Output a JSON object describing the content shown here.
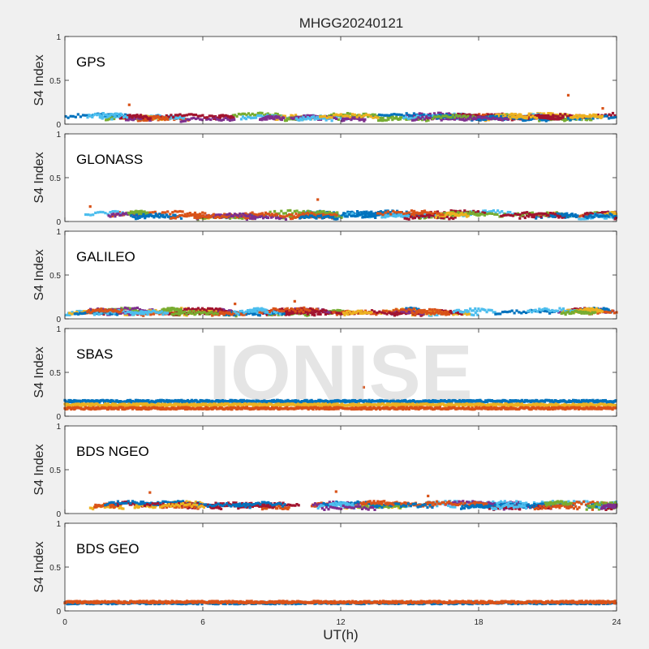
{
  "figure": {
    "title": "MHGG20240121",
    "xlabel": "UT(h)",
    "watermark": "IONISE"
  },
  "chart_data": [
    {
      "type": "scatter",
      "panel_label": "GPS",
      "ylabel": "S4 Index",
      "xlim": [
        0,
        24
      ],
      "ylim": [
        0,
        1
      ],
      "xticks": [
        0,
        6,
        12,
        18,
        24
      ],
      "yticks": [
        0,
        0.5,
        1
      ],
      "ytick_labels": [
        "0",
        "0.5",
        "1"
      ],
      "grid": false,
      "series_colors": [
        "#0072bd",
        "#d95319",
        "#edb120",
        "#7e2f8e",
        "#77ac30",
        "#4dbeee",
        "#a2142f"
      ],
      "baseline_s4": 0.07,
      "spread_s4": 0.05,
      "highlights": [
        {
          "x": 2.8,
          "y": 0.22
        },
        {
          "x": 21.9,
          "y": 0.33
        },
        {
          "x": 23.4,
          "y": 0.18
        }
      ]
    },
    {
      "type": "scatter",
      "panel_label": "GLONASS",
      "ylabel": "S4 Index",
      "xlim": [
        0,
        24
      ],
      "ylim": [
        0,
        1
      ],
      "xticks": [
        0,
        6,
        12,
        18,
        24
      ],
      "yticks": [
        0,
        0.5,
        1
      ],
      "ytick_labels": [
        "0",
        "0.5",
        "1"
      ],
      "grid": false,
      "series_colors": [
        "#0072bd",
        "#d95319",
        "#edb120",
        "#7e2f8e",
        "#77ac30",
        "#4dbeee",
        "#a2142f"
      ],
      "baseline_s4": 0.06,
      "spread_s4": 0.06,
      "highlights": [
        {
          "x": 1.1,
          "y": 0.17
        },
        {
          "x": 11.0,
          "y": 0.25
        }
      ]
    },
    {
      "type": "scatter",
      "panel_label": "GALILEO",
      "ylabel": "S4 Index",
      "xlim": [
        0,
        24
      ],
      "ylim": [
        0,
        1
      ],
      "xticks": [
        0,
        6,
        12,
        18,
        24
      ],
      "yticks": [
        0,
        0.5,
        1
      ],
      "ytick_labels": [
        "0",
        "0.5",
        "1"
      ],
      "grid": false,
      "series_colors": [
        "#0072bd",
        "#d95319",
        "#edb120",
        "#7e2f8e",
        "#77ac30",
        "#4dbeee",
        "#a2142f"
      ],
      "baseline_s4": 0.07,
      "spread_s4": 0.05,
      "highlights": [
        {
          "x": 7.4,
          "y": 0.17
        },
        {
          "x": 10.0,
          "y": 0.2
        }
      ]
    },
    {
      "type": "scatter",
      "panel_label": "SBAS",
      "ylabel": "S4 Index",
      "xlim": [
        0,
        24
      ],
      "ylim": [
        0,
        1
      ],
      "xticks": [
        0,
        6,
        12,
        18,
        24
      ],
      "yticks": [
        0,
        0.5,
        1
      ],
      "ytick_labels": [
        "0",
        "0.5",
        "1"
      ],
      "grid": false,
      "series": [
        {
          "color": "#0072bd",
          "level": 0.17
        },
        {
          "color": "#edb120",
          "level": 0.13
        },
        {
          "color": "#d95319",
          "level": 0.09
        }
      ],
      "highlights": [
        {
          "x": 13.0,
          "y": 0.33
        }
      ]
    },
    {
      "type": "scatter",
      "panel_label": "BDS NGEO",
      "ylabel": "S4 Index",
      "xlim": [
        0,
        24
      ],
      "ylim": [
        0,
        1
      ],
      "xticks": [
        0,
        6,
        12,
        18,
        24
      ],
      "yticks": [
        0,
        0.5,
        1
      ],
      "ytick_labels": [
        "0",
        "0.5",
        "1"
      ],
      "grid": false,
      "series_colors": [
        "#0072bd",
        "#d95319",
        "#edb120",
        "#7e2f8e",
        "#77ac30",
        "#4dbeee",
        "#a2142f"
      ],
      "baseline_s4": 0.08,
      "spread_s4": 0.06,
      "highlights": [
        {
          "x": 3.7,
          "y": 0.24
        },
        {
          "x": 11.8,
          "y": 0.25
        },
        {
          "x": 15.8,
          "y": 0.2
        }
      ]
    },
    {
      "type": "scatter",
      "panel_label": "BDS GEO",
      "ylabel": "S4 Index",
      "xlim": [
        0,
        24
      ],
      "ylim": [
        0,
        1
      ],
      "xticks": [
        0,
        6,
        12,
        18,
        24
      ],
      "xtick_labels": [
        "0",
        "6",
        "12",
        "18",
        "24"
      ],
      "yticks": [
        0,
        0.5,
        1
      ],
      "ytick_labels": [
        "0",
        "0.5",
        "1"
      ],
      "grid": false,
      "series": [
        {
          "color": "#0072bd",
          "level": 0.09
        },
        {
          "color": "#d95319",
          "level": 0.1
        }
      ]
    }
  ]
}
